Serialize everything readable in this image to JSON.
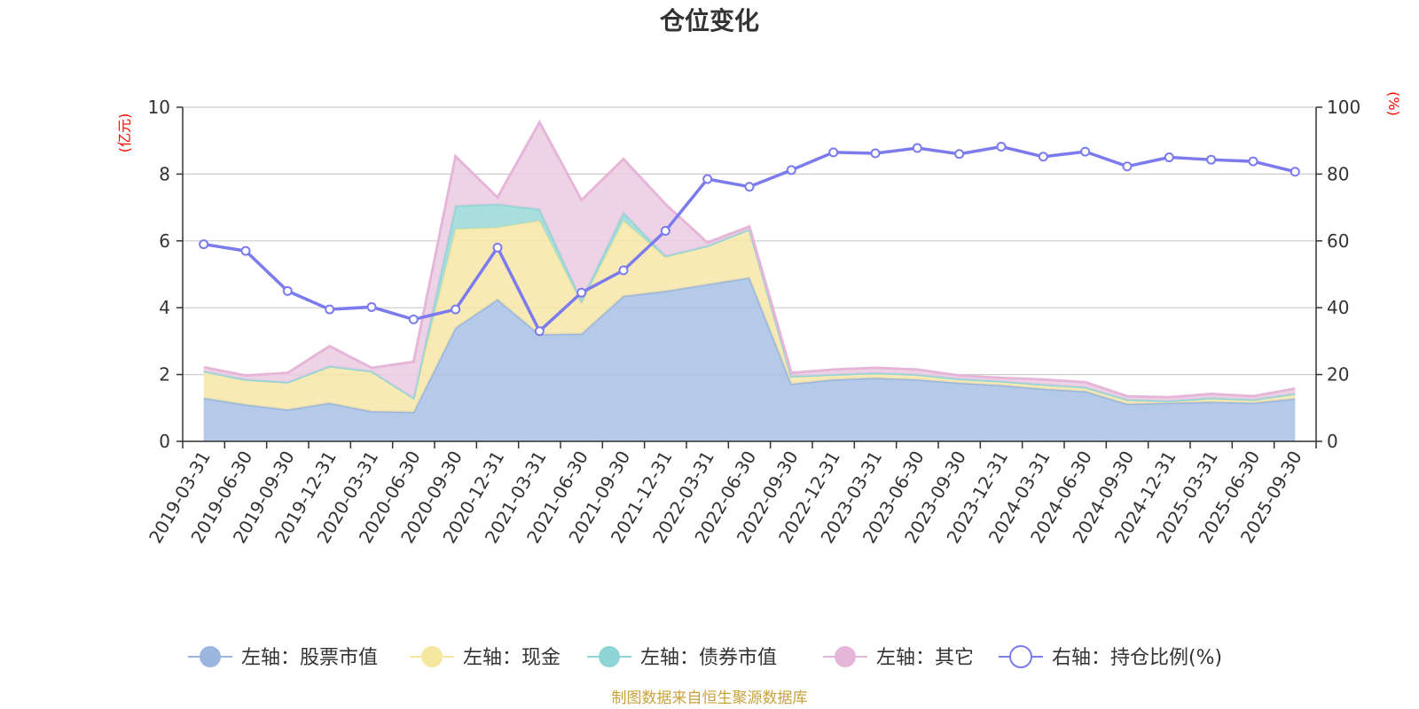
{
  "chart_data": {
    "type": "area",
    "title": "仓位变化",
    "left_unit": "(亿元)",
    "right_unit": "(%)",
    "left_ylim": [
      0,
      10
    ],
    "right_ylim": [
      0,
      100
    ],
    "left_ticks": [
      "0",
      "2",
      "4",
      "6",
      "8",
      "10"
    ],
    "right_ticks": [
      "0",
      "20",
      "40",
      "60",
      "80",
      "100"
    ],
    "grid": true,
    "legend_position": "bottom",
    "source": "制图数据来自恒生聚源数据库",
    "categories": [
      "2019-03-31",
      "2019-06-30",
      "2019-09-30",
      "2019-12-31",
      "2020-03-31",
      "2020-06-30",
      "2020-09-30",
      "2020-12-31",
      "2021-03-31",
      "2021-06-30",
      "2021-09-30",
      "2021-12-31",
      "2022-03-31",
      "2022-06-30",
      "2022-09-30",
      "2022-12-31",
      "2023-03-31",
      "2023-06-30",
      "2023-09-30",
      "2023-12-31",
      "2024-03-31",
      "2024-06-30",
      "2024-09-30",
      "2024-12-31",
      "2025-03-31",
      "2025-06-30",
      "2025-09-30"
    ],
    "series": [
      {
        "name": "左轴：股票市值",
        "axis": "left",
        "color": "#a8c0e4",
        "line": "#9ab6de",
        "values": [
          1.3,
          1.1,
          0.95,
          1.15,
          0.9,
          0.88,
          3.4,
          4.25,
          3.2,
          3.22,
          4.35,
          4.5,
          4.7,
          4.9,
          1.72,
          1.85,
          1.9,
          1.85,
          1.75,
          1.68,
          1.57,
          1.5,
          1.12,
          1.15,
          1.18,
          1.15,
          1.28
        ]
      },
      {
        "name": "左轴：现金",
        "axis": "left",
        "color": "#f7e6a8",
        "line": "#f5e6a0",
        "values": [
          0.8,
          0.75,
          0.82,
          1.1,
          1.2,
          0.42,
          2.95,
          2.15,
          3.4,
          0.9,
          2.25,
          1.0,
          1.15,
          1.45,
          0.23,
          0.15,
          0.15,
          0.15,
          0.12,
          0.12,
          0.13,
          0.12,
          0.13,
          0.06,
          0.12,
          0.1,
          0.15
        ]
      },
      {
        "name": "左轴：债券市值",
        "axis": "left",
        "color": "#9ad8d8",
        "line": "#8fd4d6",
        "values": [
          0,
          0,
          0,
          0,
          0,
          0,
          0.7,
          0.7,
          0.35,
          0.1,
          0.25,
          0.05,
          0,
          0,
          0,
          0,
          0,
          0,
          0,
          0,
          0,
          0,
          0,
          0,
          0,
          0,
          0
        ]
      },
      {
        "name": "左轴：其它",
        "axis": "left",
        "color": "#ebcbe3",
        "line": "#e6b6d9",
        "values": [
          0.12,
          0.12,
          0.28,
          0.6,
          0.1,
          1.08,
          1.48,
          0.2,
          2.6,
          3.0,
          1.6,
          1.55,
          0.1,
          0.08,
          0.1,
          0.15,
          0.15,
          0.15,
          0.1,
          0.1,
          0.15,
          0.15,
          0.1,
          0.11,
          0.12,
          0.1,
          0.15
        ]
      },
      {
        "name": "右轴：持仓比例(%)",
        "axis": "right",
        "color": "#7b7bee",
        "values": [
          59,
          57,
          45,
          39.5,
          40.2,
          36.5,
          39.5,
          58,
          33,
          44.5,
          51.2,
          63,
          78.5,
          76.2,
          81.2,
          86.5,
          86.2,
          87.8,
          86,
          88.2,
          85.2,
          86.7,
          82.3,
          85,
          84.3,
          83.8,
          80.7
        ]
      }
    ]
  }
}
